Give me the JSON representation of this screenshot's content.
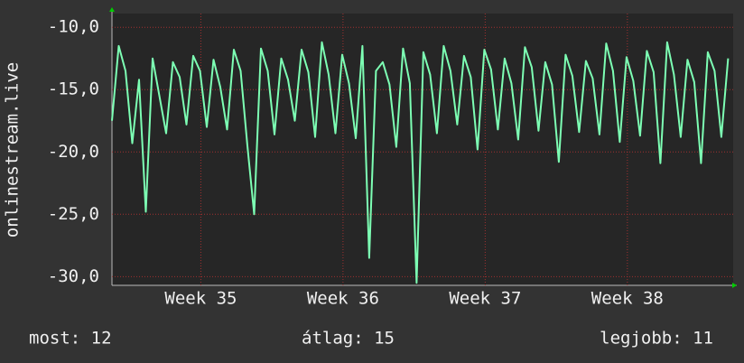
{
  "chart_data": {
    "type": "line",
    "y_label": "onlinestream.live",
    "x": [
      0,
      8,
      16,
      24,
      32,
      40,
      48,
      56,
      64,
      72,
      80,
      88,
      96,
      104,
      112,
      120,
      128,
      136,
      144,
      152,
      160,
      168,
      176,
      184,
      192,
      200,
      208,
      216,
      224,
      232,
      240,
      248,
      256,
      264,
      272,
      280,
      288,
      296,
      304,
      312,
      320,
      328,
      336,
      344,
      352,
      360,
      368,
      376,
      384,
      392,
      400,
      408,
      416,
      424,
      432,
      440,
      448,
      456,
      464,
      472,
      480,
      488,
      496,
      504,
      512,
      520,
      528,
      536,
      544,
      552,
      560,
      568,
      576,
      584,
      592,
      600,
      608,
      616,
      624,
      632,
      640,
      648,
      656,
      664,
      672,
      680,
      688,
      696,
      704,
      712,
      720,
      728
    ],
    "series": [
      {
        "name": "onlinestream.live",
        "color": "#7dffb4",
        "values": [
          -17.5,
          -11.5,
          -13.5,
          -19.3,
          -14.2,
          -24.8,
          -12.5,
          -15.5,
          -18.5,
          -12.8,
          -14,
          -17.8,
          -12.3,
          -13.5,
          -18,
          -12.6,
          -14.8,
          -18.2,
          -11.8,
          -13.5,
          -19.5,
          -25,
          -11.7,
          -13.5,
          -18.6,
          -12.5,
          -14.2,
          -17.5,
          -11.8,
          -13.6,
          -18.8,
          -11.2,
          -13.8,
          -18.5,
          -12.2,
          -14.5,
          -18.9,
          -11.5,
          -28.5,
          -13.5,
          -12.8,
          -14.6,
          -19.6,
          -11.7,
          -14.5,
          -30.5,
          -12,
          -13.8,
          -18.5,
          -11.5,
          -13.5,
          -17.8,
          -12.3,
          -14,
          -19.8,
          -11.8,
          -13.4,
          -18.2,
          -12.5,
          -14.5,
          -19,
          -11.6,
          -13.2,
          -18.3,
          -12.8,
          -14.6,
          -20.8,
          -12.2,
          -13.9,
          -18.4,
          -12.7,
          -14.1,
          -18.6,
          -11.3,
          -13.5,
          -19.2,
          -12.4,
          -14.3,
          -18.7,
          -11.9,
          -13.6,
          -20.9,
          -11.2,
          -13.8,
          -18.8,
          -12.6,
          -14.4,
          -20.9,
          -12,
          -13.5,
          -18.8,
          -12.5
        ]
      }
    ],
    "xlim": [
      0,
      734
    ],
    "xticks": [
      {
        "value": 105,
        "label": "Week 35"
      },
      {
        "value": 273,
        "label": "Week 36"
      },
      {
        "value": 441,
        "label": "Week 37"
      },
      {
        "value": 609,
        "label": "Week 38"
      }
    ],
    "ylim": [
      -30.7,
      -8.9
    ],
    "yticks": [
      {
        "value": -30,
        "label": "-30,0"
      },
      {
        "value": -25,
        "label": "-25,0"
      },
      {
        "value": -20,
        "label": "-20,0"
      },
      {
        "value": -15,
        "label": "-15,0"
      },
      {
        "value": -10,
        "label": "-10,0"
      }
    ],
    "grid": true,
    "footer": [
      "most: 12",
      "átlag: 15",
      "legjobb: 11"
    ]
  }
}
